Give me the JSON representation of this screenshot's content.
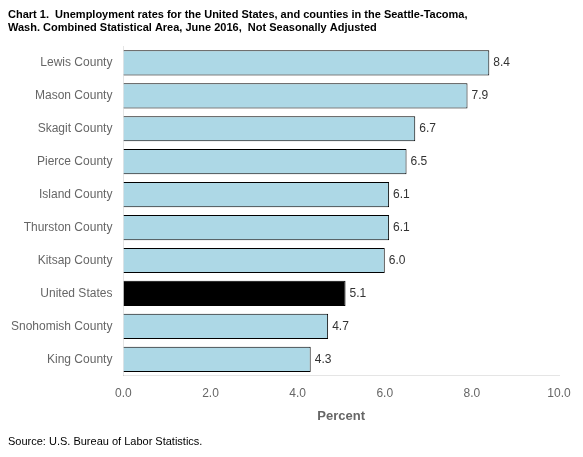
{
  "chart_data": {
    "type": "bar",
    "orientation": "horizontal",
    "title": [
      "Chart 1.  Unemployment rates for the United States, and counties in the Seattle-Tacoma,",
      "Wash. Combined Statistical Area, June 2016,  Not Seasonally Adjusted"
    ],
    "x_label": "Percent",
    "source": "Source: U.S. Bureau of Labor Statistics.",
    "categories": [
      "King County",
      "Snohomish County",
      "United States",
      "Kitsap County",
      "Thurston County",
      "Island County",
      "Pierce County",
      "Skagit County",
      "Mason County",
      "Lewis County"
    ],
    "values": [
      4.3,
      4.7,
      5.1,
      6.0,
      6.1,
      6.1,
      6.5,
      6.7,
      7.9,
      8.4
    ],
    "value_labels": [
      "4.3",
      "4.7",
      "5.1",
      "6.0",
      "6.1",
      "6.1",
      "6.5",
      "6.7",
      "7.9",
      "8.4"
    ],
    "colors": [
      "#add8e6",
      "#add8e6",
      "#000000",
      "#add8e6",
      "#add8e6",
      "#add8e6",
      "#add8e6",
      "#add8e6",
      "#add8e6",
      "#add8e6"
    ],
    "xlim": [
      0,
      10.0
    ],
    "xticks": [
      {
        "value": 0.0,
        "label": "0.0"
      },
      {
        "value": 2.0,
        "label": "2.0"
      },
      {
        "value": 4.0,
        "label": "4.0"
      },
      {
        "value": 6.0,
        "label": "6.0"
      },
      {
        "value": 8.0,
        "label": "8.0"
      },
      {
        "value": 10.0,
        "label": "10.0"
      }
    ],
    "data_labels": true,
    "grid": false
  }
}
